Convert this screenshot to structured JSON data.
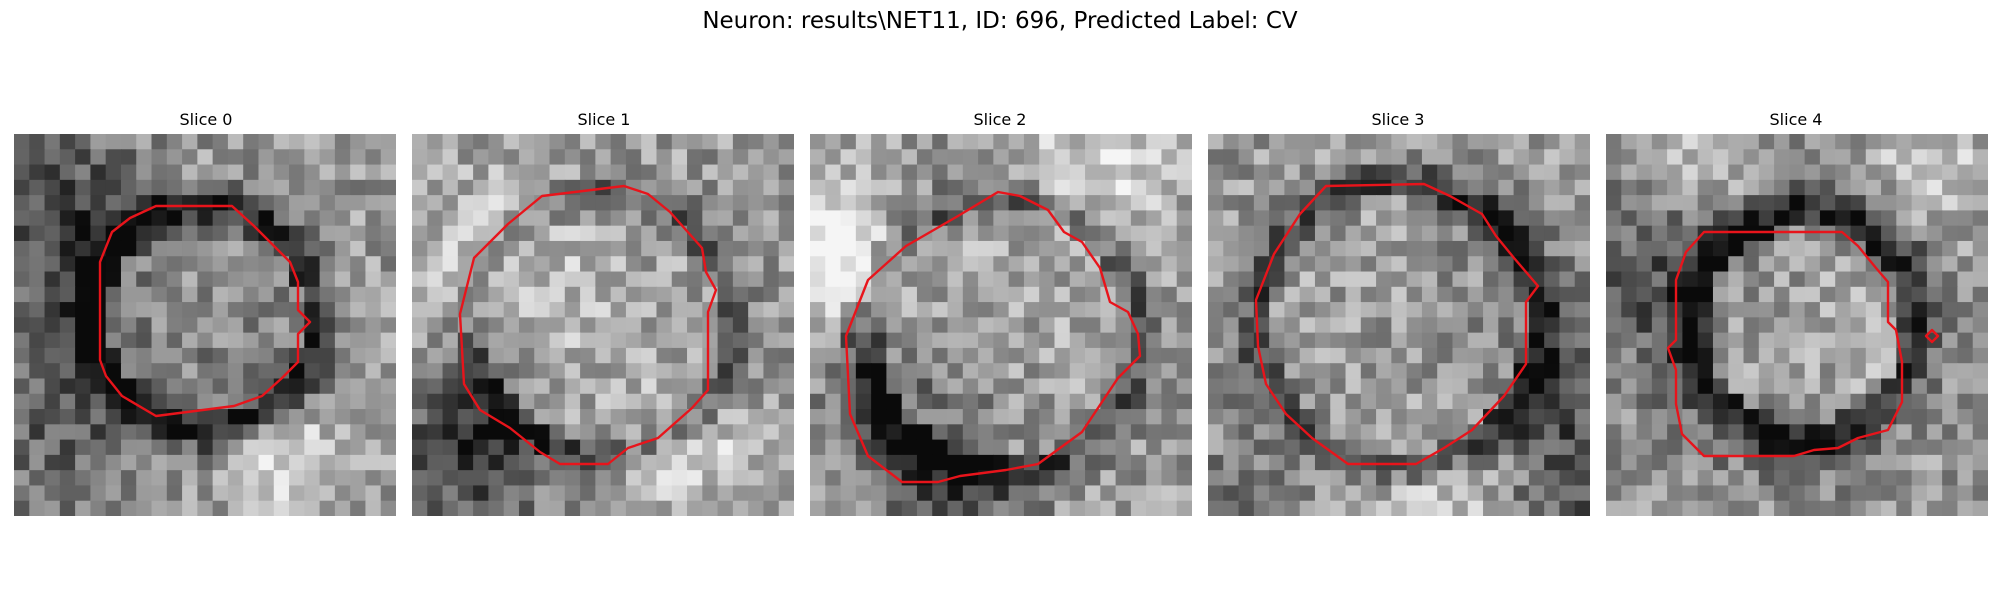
{
  "figure": {
    "title": "Neuron: results\\NET11, ID: 696, Predicted Label: CV"
  },
  "contour_color": "#e8141b",
  "slices": [
    {
      "title": "Slice 0",
      "dark_ring": 0.82,
      "ring_radius": 0.29,
      "center": [
        0.5,
        0.48
      ],
      "center_brightness": 0.55,
      "seed": 11
    },
    {
      "title": "Slice 1",
      "dark_ring": 0.55,
      "ring_radius": 0.34,
      "center": [
        0.5,
        0.5
      ],
      "center_brightness": 0.62,
      "seed": 23
    },
    {
      "title": "Slice 2",
      "dark_ring": 0.5,
      "ring_radius": 0.36,
      "center": [
        0.5,
        0.53
      ],
      "center_brightness": 0.68,
      "seed": 37
    },
    {
      "title": "Slice 3",
      "dark_ring": 0.6,
      "ring_radius": 0.37,
      "center": [
        0.5,
        0.5
      ],
      "center_brightness": 0.64,
      "seed": 41
    },
    {
      "title": "Slice 4",
      "dark_ring": 0.58,
      "ring_radius": 0.3,
      "center": [
        0.52,
        0.5
      ],
      "center_brightness": 0.78,
      "seed": 53
    }
  ]
}
